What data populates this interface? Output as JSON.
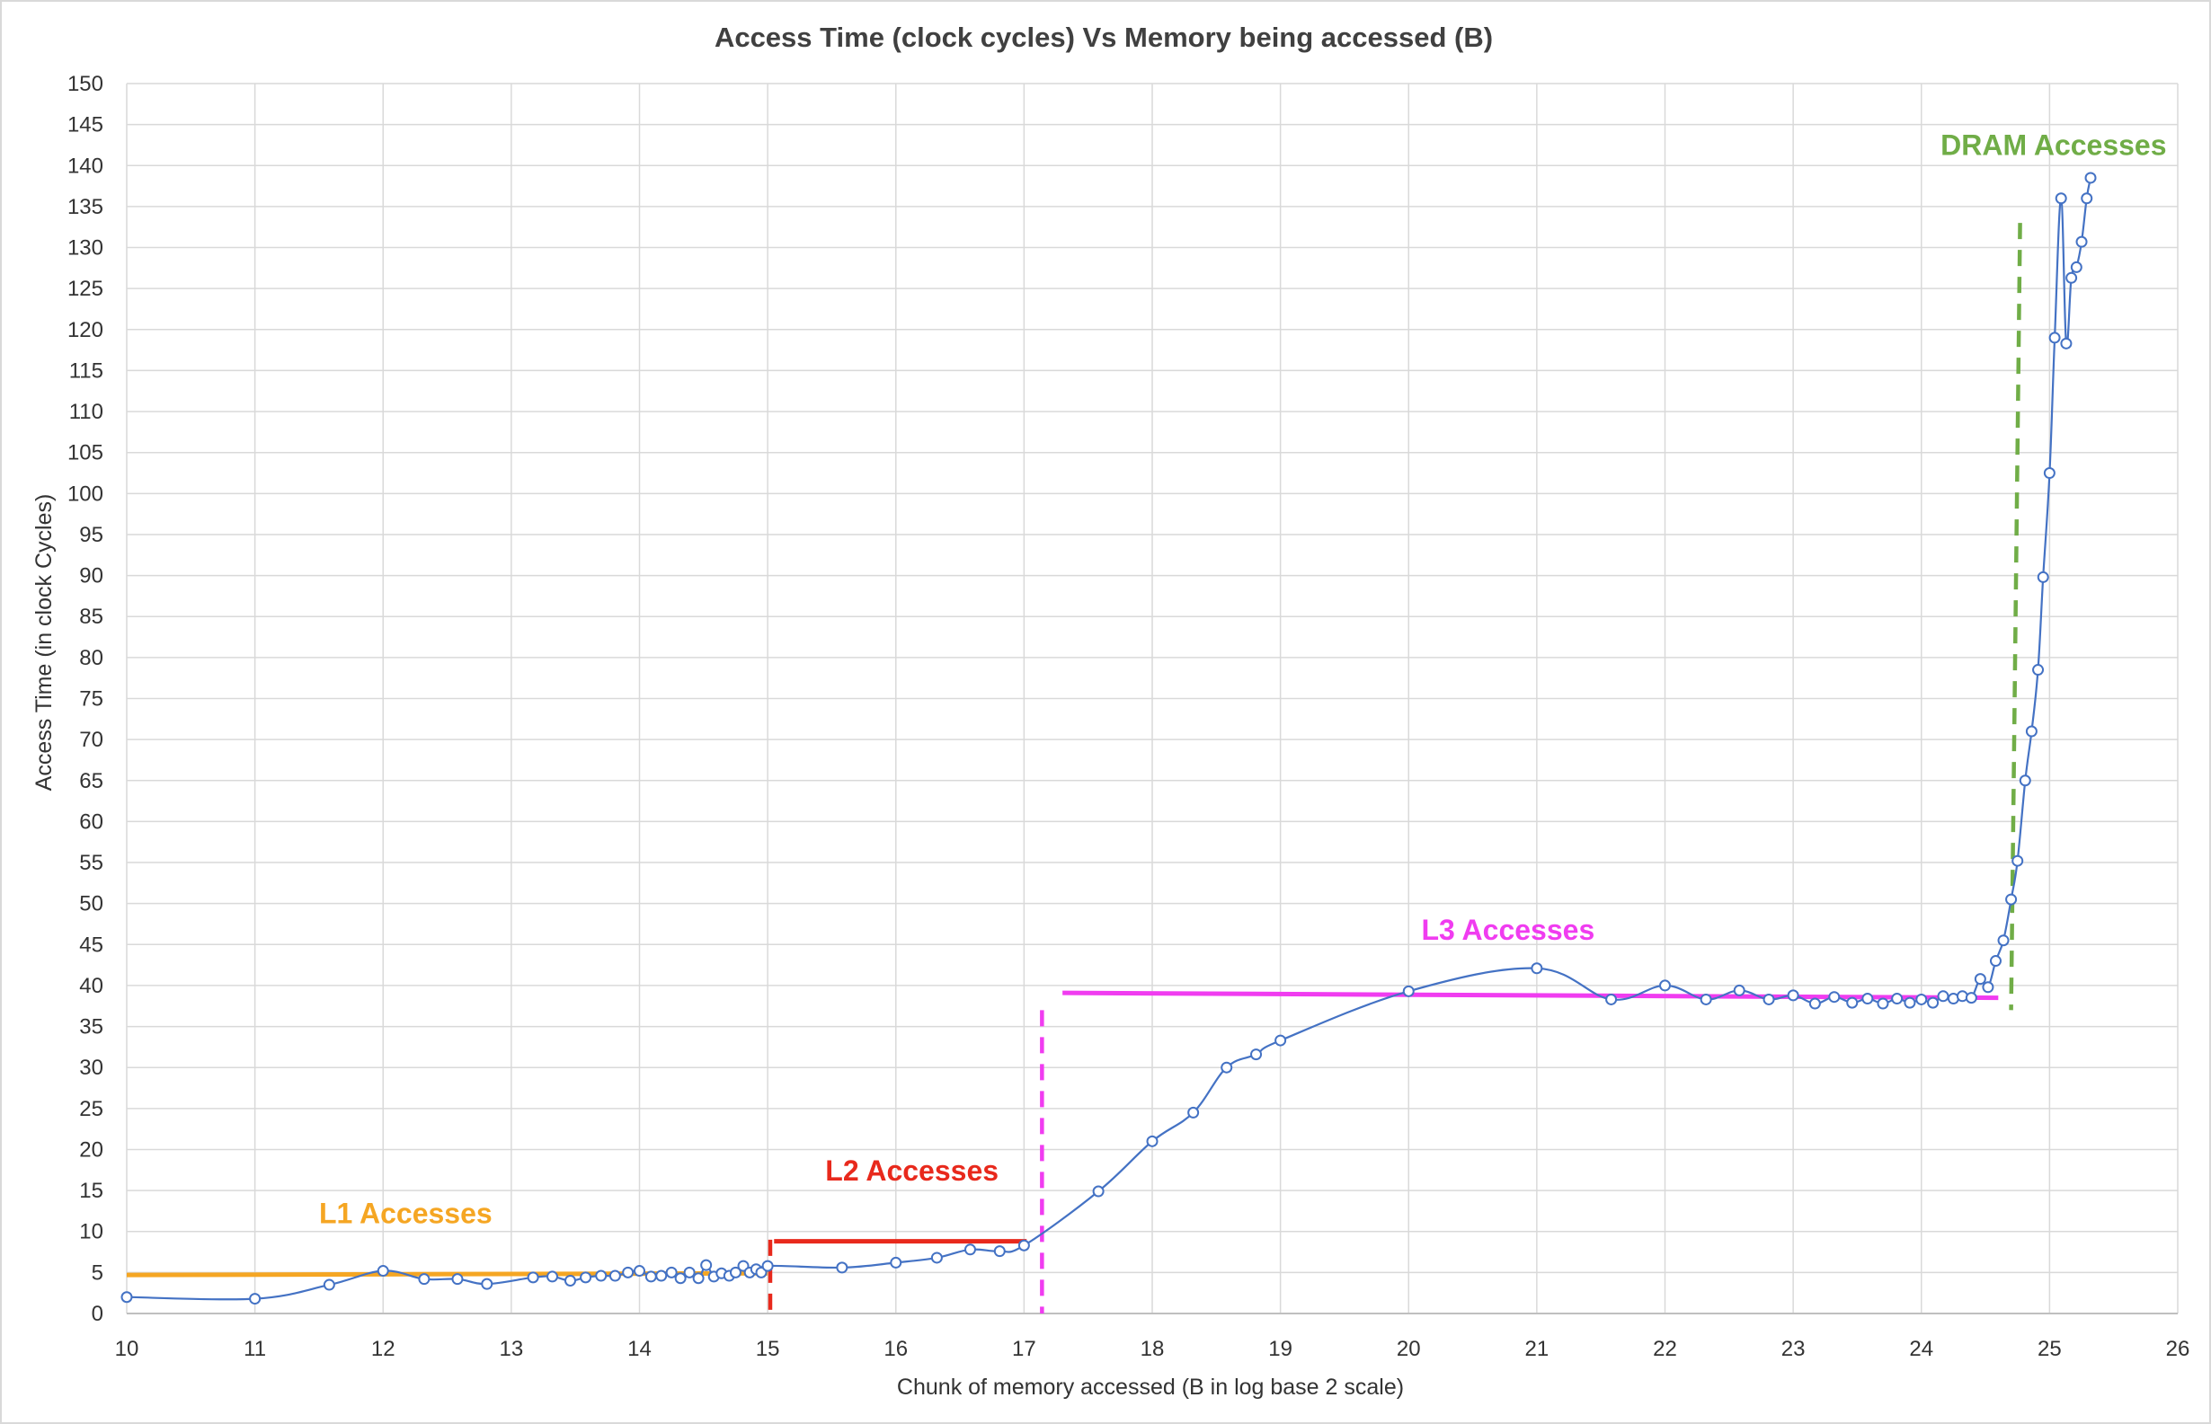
{
  "chart_data": {
    "type": "scatter",
    "title": "Access Time (clock cycles) Vs Memory being accessed (B)",
    "xlabel": "Chunk of memory accessed (B in log base 2 scale)",
    "ylabel": "Access Time (in clock Cycles)",
    "xlim": [
      10,
      26
    ],
    "ylim": [
      0,
      150
    ],
    "xticks": [
      10,
      11,
      12,
      13,
      14,
      15,
      16,
      17,
      18,
      19,
      20,
      21,
      22,
      23,
      24,
      25,
      26
    ],
    "yticks": [
      0,
      5,
      10,
      15,
      20,
      25,
      30,
      35,
      40,
      45,
      50,
      55,
      60,
      65,
      70,
      75,
      80,
      85,
      90,
      95,
      100,
      105,
      110,
      115,
      120,
      125,
      130,
      135,
      140,
      145,
      150
    ],
    "grid": true,
    "colors": {
      "series": "#4472C4",
      "l1": "#F5A623",
      "l2": "#E8291C",
      "l3": "#F03CF0",
      "dram": "#70AD47",
      "grid": "#D9D9D9",
      "border": "#D9D9D9"
    },
    "series": [
      {
        "name": "Access Time",
        "x": [
          10,
          11,
          11.58,
          12,
          12.32,
          12.58,
          12.81,
          13.17,
          13.32,
          13.46,
          13.58,
          13.7,
          13.81,
          13.91,
          14,
          14.09,
          14.17,
          14.25,
          14.32,
          14.39,
          14.46,
          14.52,
          14.58,
          14.64,
          14.7,
          14.75,
          14.81,
          14.86,
          14.91,
          14.95,
          15,
          15.58,
          16,
          16.32,
          16.58,
          16.81,
          17,
          17.58,
          18,
          18.32,
          18.58,
          18.81,
          19,
          20,
          21,
          21.58,
          22,
          22.32,
          22.58,
          22.81,
          23,
          23.17,
          23.32,
          23.46,
          23.58,
          23.7,
          23.81,
          23.91,
          24,
          24.09,
          24.17,
          24.25,
          24.32,
          24.39,
          24.46,
          24.52,
          24.58,
          24.64,
          24.7,
          24.75,
          24.81,
          24.86,
          24.91,
          24.95,
          25,
          25.04,
          25.09,
          25.13,
          25.17,
          25.21,
          25.25,
          25.29,
          25.32
        ],
        "y": [
          2,
          1.8,
          3.5,
          5.2,
          4.2,
          4.2,
          3.6,
          4.4,
          4.5,
          4.0,
          4.4,
          4.6,
          4.6,
          5.0,
          5.2,
          4.5,
          4.6,
          5.0,
          4.3,
          5.0,
          4.3,
          5.9,
          4.5,
          4.9,
          4.6,
          5.0,
          5.8,
          5.0,
          5.4,
          5.0,
          5.8,
          5.6,
          6.2,
          6.8,
          7.8,
          7.6,
          8.3,
          14.9,
          21,
          24.5,
          30,
          31.6,
          33.3,
          39.3,
          42.1,
          38.3,
          40,
          38.3,
          39.4,
          38.3,
          38.8,
          37.8,
          38.6,
          37.9,
          38.4,
          37.8,
          38.4,
          37.9,
          38.3,
          37.9,
          38.7,
          38.4,
          38.7,
          38.5,
          40.8,
          39.8,
          43,
          45.5,
          50.5,
          55.2,
          65,
          71,
          78.5,
          89.8,
          102.5,
          119,
          136,
          118.3,
          126.3,
          127.6,
          130.7,
          136,
          138.5
        ]
      }
    ],
    "annotations": [
      {
        "key": "l1",
        "text": "L1 Accesses",
        "color_key": "l1",
        "at": [
          11.5,
          11
        ]
      },
      {
        "key": "l2",
        "text": "L2 Accesses",
        "color_key": "l2",
        "at": [
          15.45,
          16.2
        ]
      },
      {
        "key": "l3",
        "text": "L3 Accesses",
        "color_key": "l3",
        "at": [
          20.1,
          45.6
        ]
      },
      {
        "key": "dram",
        "text": "DRAM Accesses",
        "color_key": "dram",
        "at": [
          24.15,
          141.3
        ]
      }
    ],
    "guide_lines": [
      {
        "color_key": "l1",
        "style": "solid",
        "x": [
          10,
          15
        ],
        "y": [
          4.7,
          4.9
        ]
      },
      {
        "color_key": "l2",
        "style": "solid",
        "x": [
          15.05,
          17.02
        ],
        "y": [
          8.8,
          8.8
        ]
      },
      {
        "color_key": "l2",
        "style": "dashed",
        "x": [
          15.02,
          15.02
        ],
        "y": [
          9,
          0
        ]
      },
      {
        "color_key": "l3",
        "style": "dashed",
        "x": [
          17.14,
          17.14
        ],
        "y": [
          37,
          0
        ]
      },
      {
        "color_key": "l3",
        "style": "solid",
        "x": [
          17.3,
          24.6
        ],
        "y": [
          39.1,
          38.5
        ]
      },
      {
        "color_key": "dram",
        "style": "dashed",
        "x": [
          24.77,
          24.7
        ],
        "y": [
          133,
          37
        ]
      }
    ]
  }
}
